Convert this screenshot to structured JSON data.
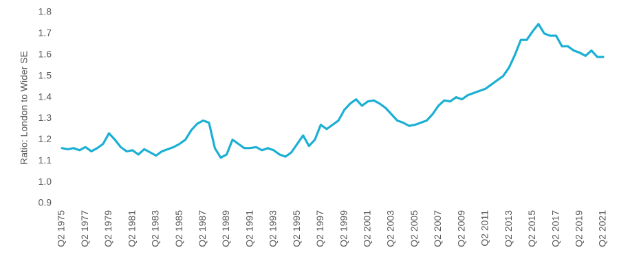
{
  "chart_data": {
    "type": "line",
    "y_label": "Ratio: London to Wider SE",
    "categories": [
      "Q2 1975",
      null,
      null,
      null,
      "Q2 1977",
      null,
      null,
      null,
      "Q2 1979",
      null,
      null,
      null,
      "Q2 1981",
      null,
      null,
      null,
      "Q2 1983",
      null,
      null,
      null,
      "Q2 1985",
      null,
      null,
      null,
      "Q2 1987",
      null,
      null,
      null,
      "Q2 1989",
      null,
      null,
      null,
      "Q2 1991",
      null,
      null,
      null,
      "Q2 1993",
      null,
      null,
      null,
      "Q2 1995",
      null,
      null,
      null,
      "Q2 1997",
      null,
      null,
      null,
      "Q2 1999",
      null,
      null,
      null,
      "Q2 2001",
      null,
      null,
      null,
      "Q2 2003",
      null,
      null,
      null,
      "Q2 2005",
      null,
      null,
      null,
      "Q2 2007",
      null,
      null,
      null,
      "Q2 2009",
      null,
      null,
      null,
      "Q2 2011",
      null,
      null,
      null,
      "Q2 2013",
      null,
      null,
      null,
      "Q2 2015",
      null,
      null,
      null,
      "Q2 2017",
      null,
      null,
      null,
      "Q2 2019",
      null,
      null,
      null,
      "Q2 2021"
    ],
    "series": [
      {
        "name": "Ratio",
        "color": "#1bafd4",
        "values": [
          1.16,
          1.155,
          1.16,
          1.15,
          1.165,
          1.145,
          1.16,
          1.18,
          1.23,
          1.2,
          1.165,
          1.145,
          1.15,
          1.13,
          1.155,
          1.14,
          1.125,
          1.145,
          1.155,
          1.165,
          1.18,
          1.2,
          1.245,
          1.275,
          1.29,
          1.28,
          1.16,
          1.115,
          1.13,
          1.2,
          1.18,
          1.16,
          1.16,
          1.165,
          1.15,
          1.16,
          1.15,
          1.13,
          1.12,
          1.14,
          1.18,
          1.22,
          1.17,
          1.2,
          1.27,
          1.25,
          1.27,
          1.29,
          1.34,
          1.37,
          1.39,
          1.36,
          1.38,
          1.385,
          1.37,
          1.35,
          1.32,
          1.29,
          1.28,
          1.265,
          1.27,
          1.28,
          1.29,
          1.32,
          1.36,
          1.385,
          1.38,
          1.4,
          1.39,
          1.41,
          1.42,
          1.43,
          1.44,
          1.46,
          1.48,
          1.5,
          1.54,
          1.6,
          1.67,
          1.67,
          1.71,
          1.745,
          1.7,
          1.69,
          1.69,
          1.64,
          1.64,
          1.62,
          1.61,
          1.595,
          1.62,
          1.59,
          1.59
        ]
      }
    ],
    "ylim": [
      0.9,
      1.8
    ],
    "yticks": [
      {
        "value": 0.9,
        "label": "0.9"
      },
      {
        "value": 1.0,
        "label": "1.0"
      },
      1.1,
      1.2,
      1.3,
      1.4,
      1.5,
      1.6,
      1.7,
      1.8
    ],
    "grid": false
  }
}
